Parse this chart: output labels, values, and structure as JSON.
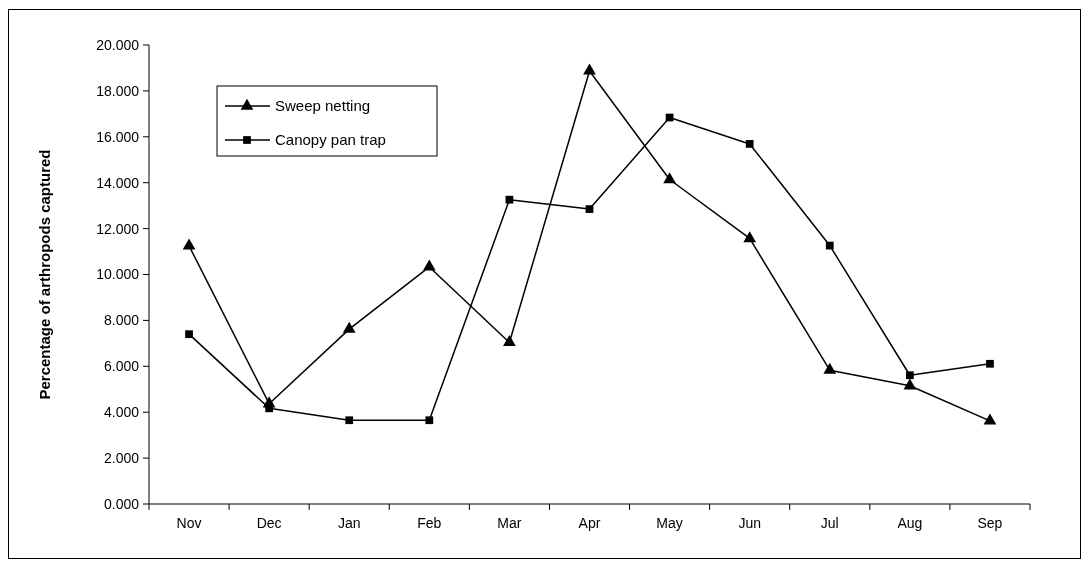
{
  "chart_data": {
    "type": "line",
    "ylabel": "Percentage of arthropods captured",
    "categories": [
      "Nov",
      "Dec",
      "Jan",
      "Feb",
      "Mar",
      "Apr",
      "May",
      "Jun",
      "Jul",
      "Aug",
      "Sep"
    ],
    "series": [
      {
        "name": "Sweep netting",
        "color": "#000000",
        "marker": "triangle",
        "values": [
          11.25,
          4.37,
          7.62,
          10.33,
          7.04,
          18.87,
          14.14,
          11.57,
          5.83,
          5.15,
          3.62
        ]
      },
      {
        "name": "Canopy pan trap",
        "color": "#000000",
        "marker": "square",
        "values": [
          7.4,
          4.17,
          3.65,
          3.65,
          13.26,
          12.85,
          16.84,
          15.69,
          11.26,
          5.61,
          6.11
        ]
      }
    ],
    "ylim": [
      0,
      20
    ],
    "yticks": [
      {
        "value": 0,
        "label": "0.000"
      },
      {
        "value": 2,
        "label": "2.000"
      },
      {
        "value": 4,
        "label": "4.000"
      },
      {
        "value": 6,
        "label": "6.000"
      },
      {
        "value": 8,
        "label": "8.000"
      },
      {
        "value": 10,
        "label": "10.000"
      },
      {
        "value": 12,
        "label": "12.000"
      },
      {
        "value": 14,
        "label": "14.000"
      },
      {
        "value": 16,
        "label": "16.000"
      },
      {
        "value": 18,
        "label": "18.000"
      },
      {
        "value": 20,
        "label": "20.000"
      }
    ],
    "grid": false,
    "legend": "top left",
    "line_style": "solid"
  }
}
